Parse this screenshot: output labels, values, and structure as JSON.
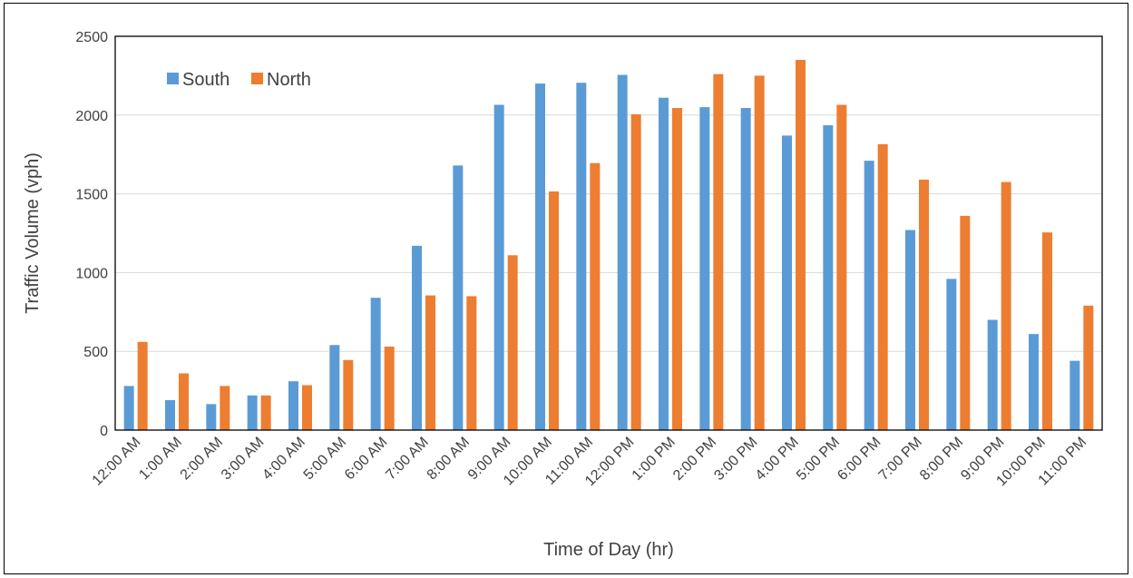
{
  "chart_data": {
    "type": "bar",
    "title": "",
    "xlabel": "Time of Day (hr)",
    "ylabel": "Traffic Volume (vph)",
    "ylim": [
      0,
      2500
    ],
    "yticks": [
      0,
      500,
      1000,
      1500,
      2000,
      2500
    ],
    "grid": true,
    "legend_position": "top-left",
    "categories": [
      "12:00 AM",
      "1:00 AM",
      "2:00 AM",
      "3:00 AM",
      "4:00 AM",
      "5:00 AM",
      "6:00 AM",
      "7:00 AM",
      "8:00 AM",
      "9:00 AM",
      "10:00 AM",
      "11:00 AM",
      "12:00 PM",
      "1:00 PM",
      "2:00 PM",
      "3:00 PM",
      "4:00 PM",
      "5:00 PM",
      "6:00 PM",
      "7:00 PM",
      "8:00 PM",
      "9:00 PM",
      "10:00 PM",
      "11:00 PM"
    ],
    "series": [
      {
        "name": "South",
        "color": "#5B9BD5",
        "values": [
          280,
          190,
          165,
          220,
          310,
          540,
          840,
          1170,
          1680,
          2065,
          2200,
          2205,
          2255,
          2110,
          2050,
          2045,
          1870,
          1935,
          1710,
          1270,
          960,
          700,
          610,
          440
        ]
      },
      {
        "name": "North",
        "color": "#ED7D31",
        "values": [
          560,
          360,
          280,
          220,
          285,
          445,
          530,
          855,
          850,
          1110,
          1515,
          1695,
          2005,
          2045,
          2260,
          2250,
          2350,
          2065,
          1815,
          1590,
          1360,
          1575,
          1255,
          790
        ]
      }
    ]
  }
}
